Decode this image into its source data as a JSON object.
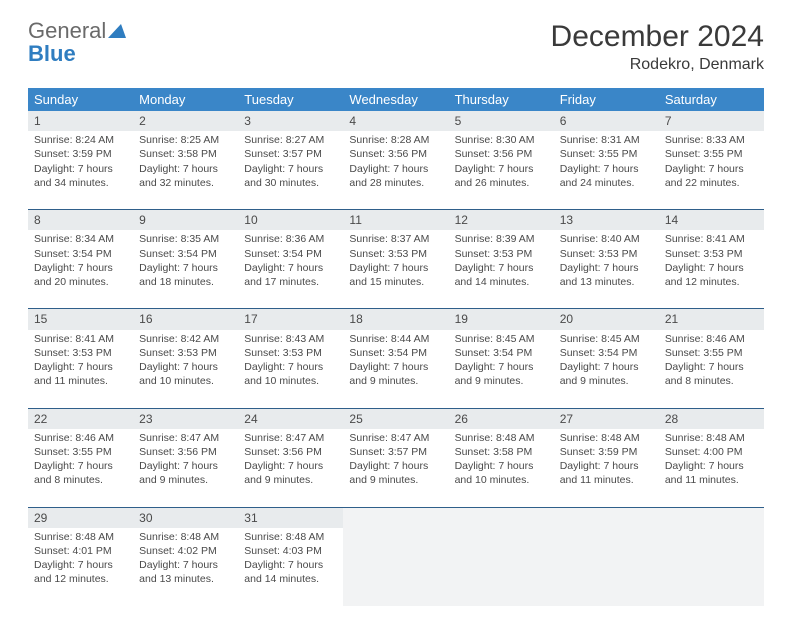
{
  "brand": {
    "general": "General",
    "blue": "Blue"
  },
  "title": "December 2024",
  "location": "Rodekro, Denmark",
  "header_bg": "#3a86c8",
  "separator_color": "#2f5f8a",
  "daynum_bg": "#e8ebed",
  "dayNames": [
    "Sunday",
    "Monday",
    "Tuesday",
    "Wednesday",
    "Thursday",
    "Friday",
    "Saturday"
  ],
  "weeks": [
    [
      {
        "n": "1",
        "sr": "8:24 AM",
        "ss": "3:59 PM",
        "dl": "7 hours and 34 minutes."
      },
      {
        "n": "2",
        "sr": "8:25 AM",
        "ss": "3:58 PM",
        "dl": "7 hours and 32 minutes."
      },
      {
        "n": "3",
        "sr": "8:27 AM",
        "ss": "3:57 PM",
        "dl": "7 hours and 30 minutes."
      },
      {
        "n": "4",
        "sr": "8:28 AM",
        "ss": "3:56 PM",
        "dl": "7 hours and 28 minutes."
      },
      {
        "n": "5",
        "sr": "8:30 AM",
        "ss": "3:56 PM",
        "dl": "7 hours and 26 minutes."
      },
      {
        "n": "6",
        "sr": "8:31 AM",
        "ss": "3:55 PM",
        "dl": "7 hours and 24 minutes."
      },
      {
        "n": "7",
        "sr": "8:33 AM",
        "ss": "3:55 PM",
        "dl": "7 hours and 22 minutes."
      }
    ],
    [
      {
        "n": "8",
        "sr": "8:34 AM",
        "ss": "3:54 PM",
        "dl": "7 hours and 20 minutes."
      },
      {
        "n": "9",
        "sr": "8:35 AM",
        "ss": "3:54 PM",
        "dl": "7 hours and 18 minutes."
      },
      {
        "n": "10",
        "sr": "8:36 AM",
        "ss": "3:54 PM",
        "dl": "7 hours and 17 minutes."
      },
      {
        "n": "11",
        "sr": "8:37 AM",
        "ss": "3:53 PM",
        "dl": "7 hours and 15 minutes."
      },
      {
        "n": "12",
        "sr": "8:39 AM",
        "ss": "3:53 PM",
        "dl": "7 hours and 14 minutes."
      },
      {
        "n": "13",
        "sr": "8:40 AM",
        "ss": "3:53 PM",
        "dl": "7 hours and 13 minutes."
      },
      {
        "n": "14",
        "sr": "8:41 AM",
        "ss": "3:53 PM",
        "dl": "7 hours and 12 minutes."
      }
    ],
    [
      {
        "n": "15",
        "sr": "8:41 AM",
        "ss": "3:53 PM",
        "dl": "7 hours and 11 minutes."
      },
      {
        "n": "16",
        "sr": "8:42 AM",
        "ss": "3:53 PM",
        "dl": "7 hours and 10 minutes."
      },
      {
        "n": "17",
        "sr": "8:43 AM",
        "ss": "3:53 PM",
        "dl": "7 hours and 10 minutes."
      },
      {
        "n": "18",
        "sr": "8:44 AM",
        "ss": "3:54 PM",
        "dl": "7 hours and 9 minutes."
      },
      {
        "n": "19",
        "sr": "8:45 AM",
        "ss": "3:54 PM",
        "dl": "7 hours and 9 minutes."
      },
      {
        "n": "20",
        "sr": "8:45 AM",
        "ss": "3:54 PM",
        "dl": "7 hours and 9 minutes."
      },
      {
        "n": "21",
        "sr": "8:46 AM",
        "ss": "3:55 PM",
        "dl": "7 hours and 8 minutes."
      }
    ],
    [
      {
        "n": "22",
        "sr": "8:46 AM",
        "ss": "3:55 PM",
        "dl": "7 hours and 8 minutes."
      },
      {
        "n": "23",
        "sr": "8:47 AM",
        "ss": "3:56 PM",
        "dl": "7 hours and 9 minutes."
      },
      {
        "n": "24",
        "sr": "8:47 AM",
        "ss": "3:56 PM",
        "dl": "7 hours and 9 minutes."
      },
      {
        "n": "25",
        "sr": "8:47 AM",
        "ss": "3:57 PM",
        "dl": "7 hours and 9 minutes."
      },
      {
        "n": "26",
        "sr": "8:48 AM",
        "ss": "3:58 PM",
        "dl": "7 hours and 10 minutes."
      },
      {
        "n": "27",
        "sr": "8:48 AM",
        "ss": "3:59 PM",
        "dl": "7 hours and 11 minutes."
      },
      {
        "n": "28",
        "sr": "8:48 AM",
        "ss": "4:00 PM",
        "dl": "7 hours and 11 minutes."
      }
    ],
    [
      {
        "n": "29",
        "sr": "8:48 AM",
        "ss": "4:01 PM",
        "dl": "7 hours and 12 minutes."
      },
      {
        "n": "30",
        "sr": "8:48 AM",
        "ss": "4:02 PM",
        "dl": "7 hours and 13 minutes."
      },
      {
        "n": "31",
        "sr": "8:48 AM",
        "ss": "4:03 PM",
        "dl": "7 hours and 14 minutes."
      },
      null,
      null,
      null,
      null
    ]
  ],
  "labels": {
    "sunrise": "Sunrise:",
    "sunset": "Sunset:",
    "daylight": "Daylight:"
  }
}
